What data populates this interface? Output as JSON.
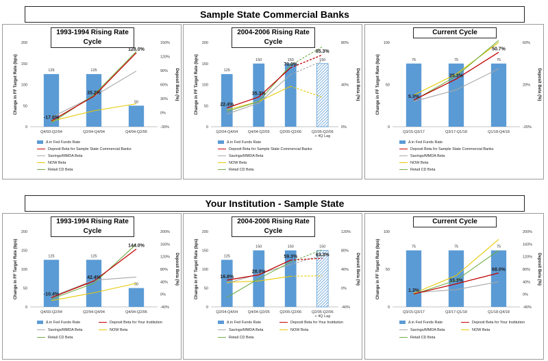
{
  "sections": [
    {
      "title": "Sample State Commercial Banks"
    },
    {
      "title": "Your Institution - Sample State"
    }
  ],
  "colors": {
    "bar": "#5b9bd5",
    "deposit": "#c00000",
    "savings": "#a6a6a6",
    "now": "#e6c800",
    "retail_cd": "#70ad47"
  },
  "chart_data": [
    {
      "type": "bar",
      "title": "1993-1994 Rising Rate Cycle",
      "ylabel": "Change in FF Target Rate (bps)",
      "y2label": "Deposit Beta (%)",
      "ylim": [
        0,
        200
      ],
      "yticks": [
        0,
        50,
        100,
        150,
        200
      ],
      "y2lim": [
        -30,
        150
      ],
      "y2ticks": [
        "-30%",
        "0%",
        "30%",
        "60%",
        "90%",
        "120%",
        "150%"
      ],
      "categories": [
        "Q4/93-Q2/94",
        "Q2/94-Q4/94",
        "Q4/94-Q2/95"
      ],
      "bar_values": [
        125,
        125,
        50
      ],
      "bar_labels": [
        "125",
        "125",
        "50"
      ],
      "beta_labels": [
        "-17.6%",
        "35.2%",
        "128.0%"
      ],
      "series": [
        {
          "name": "Δ in Fed Funds Rate",
          "key": "bar"
        },
        {
          "name": "Deposit Beta for Sample State Commercial Banks",
          "key": "deposit",
          "values": [
            -17.6,
            35.2,
            128.0
          ]
        },
        {
          "name": "Savings/MMDA Beta",
          "key": "savings",
          "values": [
            -10,
            35,
            89
          ]
        },
        {
          "name": "NOW Beta",
          "key": "now",
          "values": [
            -18,
            4,
            19
          ]
        },
        {
          "name": "Retail CD Beta",
          "key": "retail_cd",
          "values": [
            -22,
            38,
            131
          ]
        }
      ],
      "grid": false,
      "legend": "bottom"
    },
    {
      "type": "bar",
      "title": "2004-2006 Rising Rate Cycle",
      "ylabel": "Change in FF Target Rate (bps)",
      "y2label": "Deposit Beta (%)",
      "ylim": [
        0,
        200
      ],
      "yticks": [
        0,
        50,
        100,
        150,
        200
      ],
      "y2lim": [
        0,
        100
      ],
      "y2ticks": [
        "0%",
        "40%",
        "80%"
      ],
      "categories": [
        "Q2/04-Q4/04",
        "Q4/04-Q2/05",
        "Q2/05-Q2/06",
        "Q2/05-Q2/06 + 4Q Lag"
      ],
      "bar_values": [
        125,
        150,
        150,
        150
      ],
      "bar_labels": [
        "125",
        "150",
        "150",
        "150"
      ],
      "hatched_last": true,
      "beta_labels": [
        "22.4%",
        "35.3%",
        "70.0%",
        "85.3%"
      ],
      "series": [
        {
          "name": "Δ in Fed Funds Rate",
          "key": "bar"
        },
        {
          "name": "Deposit Beta for Sample State Commercial Banks",
          "key": "deposit",
          "values": [
            22.4,
            35.3,
            70.0,
            85.3
          ],
          "dashed_last": true
        },
        {
          "name": "Savings/MMDA Beta",
          "key": "savings",
          "values": [
            15,
            28,
            62,
            78
          ],
          "dashed_last": true
        },
        {
          "name": "NOW Beta",
          "key": "now",
          "values": [
            20,
            30,
            48,
            35
          ],
          "dashed_last": true
        },
        {
          "name": "Retail CD Beta",
          "key": "retail_cd",
          "values": [
            18,
            30,
            73,
            95
          ],
          "dashed_last": true
        }
      ],
      "grid": false,
      "legend": "bottom"
    },
    {
      "type": "bar",
      "title": "Current Cycle",
      "ylabel": "Change in FF Target Rate (bps)",
      "y2label": "Deposit Beta (%)",
      "ylim": [
        0,
        100
      ],
      "yticks": [
        0,
        50,
        100
      ],
      "y2lim": [
        -20,
        60
      ],
      "y2ticks": [
        "-20%",
        "20%",
        "60%"
      ],
      "categories": [
        "Q3/15-Q3/17",
        "Q3/17-Q1/18",
        "Q1/18-Q4/18"
      ],
      "bar_values": [
        75,
        75,
        75
      ],
      "bar_labels": [
        "75",
        "75",
        "75"
      ],
      "beta_labels": [
        "5.3%",
        "25.3%",
        "50.7%"
      ],
      "series": [
        {
          "name": "Δ in Fed Funds Rate",
          "key": "bar"
        },
        {
          "name": "Deposit Beta for Sample State Commercial Banks",
          "key": "deposit",
          "values": [
            5.3,
            25.3,
            50.7
          ]
        },
        {
          "name": "Savings/MMDA Beta",
          "key": "savings",
          "values": [
            4,
            15,
            35
          ]
        },
        {
          "name": "NOW Beta",
          "key": "now",
          "values": [
            10,
            30,
            60
          ]
        },
        {
          "name": "Retail CD Beta",
          "key": "retail_cd",
          "values": [
            5,
            28,
            62
          ]
        }
      ],
      "grid": false,
      "legend": "bottom"
    },
    {
      "type": "bar",
      "title": "1993-1994 Rising Rate Cycle",
      "ylabel": "Change in FF Target Rate (bps)",
      "y2label": "Deposit Beta (%)",
      "ylim": [
        0,
        200
      ],
      "yticks": [
        0,
        50,
        100,
        150,
        200
      ],
      "y2lim": [
        -40,
        200
      ],
      "y2ticks": [
        "-40%",
        "0%",
        "40%",
        "80%",
        "120%",
        "160%",
        "200%"
      ],
      "categories": [
        "Q4/93-Q2/94",
        "Q2/94-Q4/94",
        "Q4/94-Q2/95"
      ],
      "bar_values": [
        125,
        125,
        50
      ],
      "bar_labels": [
        "125",
        "125",
        "50"
      ],
      "beta_labels": [
        "-10.4%",
        "42.4%",
        "144.0%"
      ],
      "series": [
        {
          "name": "Δ in Fed Funds Rate",
          "key": "bar"
        },
        {
          "name": "Deposit Beta for Your Institution",
          "key": "deposit",
          "values": [
            -10.4,
            42.4,
            144.0
          ]
        },
        {
          "name": "Savings/MMDA Beta",
          "key": "savings",
          "values": [
            -8,
            45,
            55
          ]
        },
        {
          "name": "NOW Beta",
          "key": "now",
          "values": [
            -20,
            5,
            35
          ]
        },
        {
          "name": "Retail CD Beta",
          "key": "retail_cd",
          "values": [
            -15,
            35,
            160
          ]
        }
      ],
      "grid": false,
      "legend": "bottom"
    },
    {
      "type": "bar",
      "title": "2004-2006 Rising Rate Cycle",
      "ylabel": "Change in FF Target Rate (bps)",
      "y2label": "Deposit Beta (%)",
      "ylim": [
        0,
        200
      ],
      "yticks": [
        0,
        50,
        100,
        150,
        200
      ],
      "y2lim": [
        -40,
        120
      ],
      "y2ticks": [
        "-40%",
        "0%",
        "40%",
        "80%",
        "120%"
      ],
      "categories": [
        "Q2/04-Q4/04",
        "Q4/04-Q2/05",
        "Q2/05-Q2/06",
        "Q2/05-Q2/06 + 4Q Lag"
      ],
      "bar_values": [
        125,
        150,
        150,
        150
      ],
      "bar_labels": [
        "125",
        "150",
        "150",
        "150"
      ],
      "hatched_last": true,
      "beta_labels": [
        "16.8%",
        "28.0%",
        "59.3%",
        "63.3%"
      ],
      "series": [
        {
          "name": "Δ in Fed Funds Rate",
          "key": "bar"
        },
        {
          "name": "Deposit Beta for Your Institution",
          "key": "deposit",
          "values": [
            16.8,
            28.0,
            59.3,
            63.3
          ],
          "dashed_last": true
        },
        {
          "name": "Savings/MMDA Beta",
          "key": "savings",
          "values": [
            10,
            30,
            50,
            70
          ],
          "dashed_last": true
        },
        {
          "name": "NOW Beta",
          "key": "now",
          "values": [
            12,
            15,
            25,
            26
          ],
          "dashed_last": true
        },
        {
          "name": "Retail CD Beta",
          "key": "retail_cd",
          "values": [
            -20,
            20,
            55,
            82
          ],
          "dashed_last": true
        }
      ],
      "grid": false,
      "legend": "bottom"
    },
    {
      "type": "bar",
      "title": "Current Cycle",
      "ylabel": "Change in FF Target Rate (bps)",
      "y2label": "Deposit Beta (%)",
      "ylim": [
        0,
        100
      ],
      "yticks": [
        0,
        50,
        100
      ],
      "y2lim": [
        -40,
        200
      ],
      "y2ticks": [
        "-40%",
        "0%",
        "40%",
        "80%",
        "120%",
        "160%",
        "200%"
      ],
      "categories": [
        "Q3/15-Q3/17",
        "Q3/17-Q1/18",
        "Q1/18-Q4/18"
      ],
      "bar_values": [
        75,
        75,
        75
      ],
      "bar_labels": [
        "75",
        "75",
        "75"
      ],
      "beta_labels": [
        "1.3%",
        "33.3%",
        "68.0%"
      ],
      "series": [
        {
          "name": "Δ in Fed Funds Rate",
          "key": "bar"
        },
        {
          "name": "Deposit Beta for Your Institution",
          "key": "deposit",
          "values": [
            1.3,
            33.3,
            68.0
          ]
        },
        {
          "name": "Savings/MMDA Beta",
          "key": "savings",
          "values": [
            5,
            15,
            40
          ]
        },
        {
          "name": "NOW Beta",
          "key": "now",
          "values": [
            3,
            60,
            175
          ]
        },
        {
          "name": "Retail CD Beta",
          "key": "retail_cd",
          "values": [
            0,
            45,
            140
          ]
        }
      ],
      "grid": false,
      "legend": "bottom"
    }
  ]
}
